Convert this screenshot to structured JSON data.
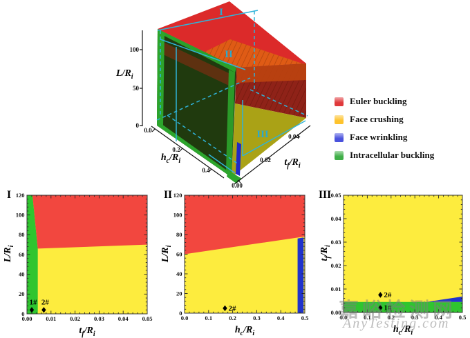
{
  "watermark": {
    "cn": "嘉峪检测网",
    "en": "AnyTesting.com"
  },
  "legend": {
    "items": [
      {
        "label": "Euler buckling",
        "color": "#e0393b"
      },
      {
        "label": "Face crushing",
        "color": "#fec32d"
      },
      {
        "label": "Face wrinkling",
        "color": "#4a52dd"
      },
      {
        "label": "Intracellular buckling",
        "color": "#3fae47"
      }
    ]
  },
  "colors": {
    "red": "#f2473f",
    "yellow": "#fdec3e",
    "green": "#2fc52f",
    "blue": "#2033cc"
  },
  "cube": {
    "labels": {
      "I": "I",
      "II": "II",
      "III": "III"
    },
    "axes": {
      "L": {
        "label": {
          "base": "L",
          "sub": "",
          "denom": "/R",
          "dsub": "i"
        },
        "ticks": [
          "0",
          "50",
          "100"
        ]
      },
      "hc": {
        "label": {
          "base": "h",
          "sub": "c",
          "denom": "/R",
          "dsub": "i"
        },
        "ticks": [
          "0.0",
          "0.2",
          "0.4"
        ]
      },
      "tf": {
        "label": {
          "base": "t",
          "sub": "f",
          "denom": "/R",
          "dsub": "i"
        },
        "ticks": [
          "0.00",
          "0.02",
          "0.04"
        ]
      }
    }
  },
  "chart_data": [
    {
      "id": "I",
      "type": "area",
      "panel_label": "I",
      "xlabel": {
        "base": "t",
        "sub": "f",
        "denom": "/R",
        "dsub": "i"
      },
      "ylabel": {
        "base": "L",
        "sub": "",
        "denom": "/R",
        "dsub": "i"
      },
      "xlim": [
        0,
        0.05
      ],
      "ylim": [
        0,
        120
      ],
      "xticks": [
        0,
        0.01,
        0.02,
        0.03,
        0.04,
        0.05
      ],
      "xtick_labels": [
        "0.00",
        "0.01",
        "0.02",
        "0.03",
        "0.04",
        "0.05"
      ],
      "yticks": [
        0,
        20,
        40,
        60,
        80,
        100,
        120
      ],
      "ytick_labels": [
        "0",
        "20",
        "40",
        "60",
        "80",
        "100",
        "120"
      ],
      "background_color_key": "yellow",
      "background_phase": "face_crushing",
      "regions": [
        {
          "phase": "intracellular_buckling",
          "color_key": "green",
          "points": [
            [
              0,
              0
            ],
            [
              0.0045,
              0
            ],
            [
              0.0045,
              66
            ],
            [
              0.0023,
              120
            ],
            [
              0,
              120
            ]
          ]
        },
        {
          "phase": "euler_buckling",
          "color_key": "red",
          "points": [
            [
              0.0023,
              120
            ],
            [
              0.0045,
              66
            ],
            [
              0.05,
              70
            ],
            [
              0.05,
              120
            ]
          ]
        }
      ],
      "markers": [
        {
          "label": "1#",
          "x": 0.002,
          "y": 4,
          "label_side": "above"
        },
        {
          "label": "2#",
          "x": 0.007,
          "y": 4,
          "label_side": "above"
        }
      ]
    },
    {
      "id": "II",
      "type": "area",
      "panel_label": "II",
      "xlabel": {
        "base": "h",
        "sub": "c",
        "denom": "/R",
        "dsub": "i"
      },
      "ylabel": {
        "base": "L",
        "sub": "",
        "denom": "/R",
        "dsub": "i"
      },
      "xlim": [
        0,
        0.5
      ],
      "ylim": [
        0,
        120
      ],
      "xticks": [
        0,
        0.1,
        0.2,
        0.3,
        0.4,
        0.5
      ],
      "xtick_labels": [
        "0.0",
        "0.1",
        "0.2",
        "0.3",
        "0.4",
        "0.5"
      ],
      "yticks": [
        0,
        20,
        40,
        60,
        80,
        100,
        120
      ],
      "ytick_labels": [
        "0",
        "20",
        "40",
        "60",
        "80",
        "100",
        "120"
      ],
      "background_color_key": "yellow",
      "background_phase": "face_crushing",
      "regions": [
        {
          "phase": "euler_buckling",
          "color_key": "red",
          "points": [
            [
              0,
              60
            ],
            [
              0.5,
              78
            ],
            [
              0.5,
              120
            ],
            [
              0,
              120
            ]
          ]
        },
        {
          "phase": "face_wrinkling",
          "color_key": "blue",
          "points": [
            [
              0.47,
              0
            ],
            [
              0.495,
              0
            ],
            [
              0.495,
              77
            ],
            [
              0.47,
              76
            ]
          ]
        }
      ],
      "markers": [
        {
          "label": "2#",
          "x": 0.168,
          "y": 5,
          "label_side": "right"
        }
      ]
    },
    {
      "id": "III",
      "type": "area",
      "panel_label": "III",
      "xlabel": {
        "base": "h",
        "sub": "c",
        "denom": "/R",
        "dsub": "i"
      },
      "ylabel": {
        "base": "t",
        "sub": "f",
        "denom": "/R",
        "dsub": "i"
      },
      "xlim": [
        0,
        0.5
      ],
      "ylim": [
        0,
        0.05
      ],
      "xticks": [
        0,
        0.1,
        0.2,
        0.3,
        0.4,
        0.5
      ],
      "xtick_labels": [
        "0.0",
        "0.1",
        "0.2",
        "0.3",
        "0.4",
        "0.5"
      ],
      "yticks": [
        0,
        0.01,
        0.02,
        0.03,
        0.04,
        0.05
      ],
      "ytick_labels": [
        "0.00",
        "0.01",
        "0.02",
        "0.03",
        "0.04",
        "0.05"
      ],
      "background_color_key": "yellow",
      "background_phase": "face_crushing",
      "regions": [
        {
          "phase": "intracellular_buckling",
          "color_key": "green",
          "points": [
            [
              0,
              0
            ],
            [
              0.5,
              0
            ],
            [
              0.5,
              0.0045
            ],
            [
              0,
              0.0045
            ]
          ]
        },
        {
          "phase": "face_wrinkling",
          "color_key": "blue",
          "points": [
            [
              0.35,
              0.0045
            ],
            [
              0.5,
              0.0045
            ],
            [
              0.5,
              0.0068
            ]
          ]
        }
      ],
      "markers": [
        {
          "label": "2#",
          "x": 0.155,
          "y": 0.0075,
          "label_side": "right"
        },
        {
          "label": "1#",
          "x": 0.155,
          "y": 0.002,
          "label_side": "right"
        }
      ]
    }
  ]
}
